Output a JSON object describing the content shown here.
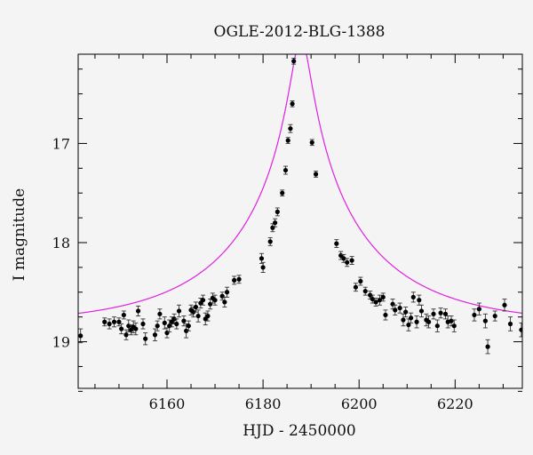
{
  "chart_data": {
    "type": "scatter",
    "title": "OGLE-2012-BLG-1388",
    "xlabel": "HJD - 2450000",
    "ylabel": "I magnitude",
    "xlim": [
      6141.5,
      6234
    ],
    "ylim": [
      19.47,
      16.1
    ],
    "y_inverted": true,
    "grid": false,
    "x_ticks": [
      6160,
      6180,
      6200,
      6220
    ],
    "x_tick_labels": [
      "6160",
      "6180",
      "6200",
      "6220"
    ],
    "y_ticks": [
      17,
      18,
      19
    ],
    "y_tick_labels": [
      "17",
      "18",
      "19"
    ],
    "colors": {
      "points": "#000000",
      "model": "#e020e0",
      "frame": "#000000",
      "background": "#f4f4f4"
    },
    "model": {
      "name": "",
      "params": {
        "t0": 6187.9,
        "u0": 0.065,
        "tE": 30.0,
        "I_base": 18.83,
        "fs": 0.92
      }
    },
    "series": [
      {
        "name": "",
        "x": [
          6142,
          6147,
          6148,
          6149,
          6150,
          6150.5,
          6151,
          6151.5,
          6152,
          6152.5,
          6153,
          6153.5,
          6154,
          6155,
          6155.5,
          6157.5,
          6158,
          6158.5,
          6159.5,
          6160,
          6160.5,
          6161,
          6161.5,
          6162,
          6162.5,
          6163.5,
          6164,
          6164.5,
          6165,
          6165.5,
          6166,
          6166.5,
          6167,
          6167.5,
          6168,
          6168.5,
          6169,
          6169.5,
          6170,
          6171.5,
          6172,
          6172.5,
          6174,
          6175,
          6179.7,
          6180,
          6181.5,
          6182,
          6182.5,
          6183,
          6184,
          6184.7,
          6185.2,
          6185.7,
          6186.1,
          6186.4,
          6190.2,
          6191,
          6195.3,
          6196.2,
          6196.8,
          6197.5,
          6198.5,
          6199.3,
          6200.3,
          6201.3,
          6202.3,
          6202.8,
          6203.5,
          6204.3,
          6205,
          6205.5,
          6207,
          6207.5,
          6208.5,
          6209.2,
          6209.7,
          6210.3,
          6210.8,
          6211.3,
          6212,
          6212.5,
          6213,
          6214,
          6214.5,
          6215.5,
          6216.3,
          6217,
          6218,
          6218.5,
          6219.2,
          6219.8,
          6224,
          6225,
          6226.3,
          6226.8,
          6228.3,
          6230.3,
          6231.5,
          6233.8
        ],
        "y": [
          18.94,
          18.8,
          18.82,
          18.8,
          18.8,
          18.87,
          18.73,
          18.93,
          18.84,
          18.88,
          18.85,
          18.87,
          18.69,
          18.82,
          18.97,
          18.93,
          18.84,
          18.72,
          18.81,
          18.91,
          18.84,
          18.8,
          18.77,
          18.82,
          18.69,
          18.79,
          18.89,
          18.84,
          18.68,
          18.7,
          18.65,
          18.74,
          18.61,
          18.58,
          18.77,
          18.74,
          18.62,
          18.56,
          18.58,
          18.54,
          18.6,
          18.5,
          18.38,
          18.37,
          18.16,
          18.25,
          17.99,
          17.85,
          17.8,
          17.69,
          17.5,
          17.27,
          16.97,
          16.85,
          16.6,
          16.17,
          16.99,
          17.31,
          18.01,
          18.13,
          18.16,
          18.2,
          18.18,
          18.45,
          18.39,
          18.49,
          18.53,
          18.57,
          18.6,
          18.58,
          18.55,
          18.73,
          18.62,
          18.68,
          18.66,
          18.78,
          18.7,
          18.83,
          18.76,
          18.55,
          18.8,
          18.58,
          18.69,
          18.78,
          18.8,
          18.72,
          18.84,
          18.71,
          18.72,
          18.8,
          18.79,
          18.84,
          18.73,
          18.67,
          18.79,
          19.05,
          18.74,
          18.63,
          18.82,
          18.88
        ],
        "err": [
          0.07,
          0.04,
          0.05,
          0.05,
          0.04,
          0.05,
          0.04,
          0.05,
          0.06,
          0.05,
          0.06,
          0.06,
          0.05,
          0.05,
          0.06,
          0.06,
          0.05,
          0.05,
          0.06,
          0.05,
          0.06,
          0.05,
          0.05,
          0.05,
          0.06,
          0.05,
          0.07,
          0.05,
          0.05,
          0.05,
          0.05,
          0.06,
          0.05,
          0.05,
          0.06,
          0.05,
          0.05,
          0.05,
          0.05,
          0.04,
          0.05,
          0.05,
          0.04,
          0.04,
          0.05,
          0.05,
          0.04,
          0.04,
          0.04,
          0.04,
          0.03,
          0.04,
          0.03,
          0.04,
          0.03,
          0.03,
          0.03,
          0.03,
          0.04,
          0.04,
          0.04,
          0.04,
          0.04,
          0.04,
          0.04,
          0.04,
          0.04,
          0.04,
          0.04,
          0.05,
          0.04,
          0.05,
          0.05,
          0.05,
          0.05,
          0.06,
          0.05,
          0.06,
          0.05,
          0.05,
          0.06,
          0.05,
          0.06,
          0.06,
          0.06,
          0.05,
          0.06,
          0.05,
          0.05,
          0.06,
          0.05,
          0.06,
          0.06,
          0.06,
          0.07,
          0.07,
          0.05,
          0.06,
          0.07,
          0.07
        ]
      }
    ]
  }
}
